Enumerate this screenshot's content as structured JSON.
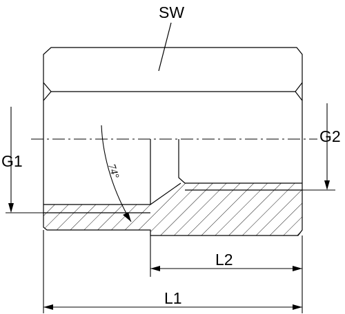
{
  "labels": {
    "sw": "SW",
    "g1": "G1",
    "g2": "G2",
    "l1": "L1",
    "l2": "L2",
    "angle": "74°"
  },
  "colors": {
    "line": "#000000",
    "background": "#ffffff"
  }
}
